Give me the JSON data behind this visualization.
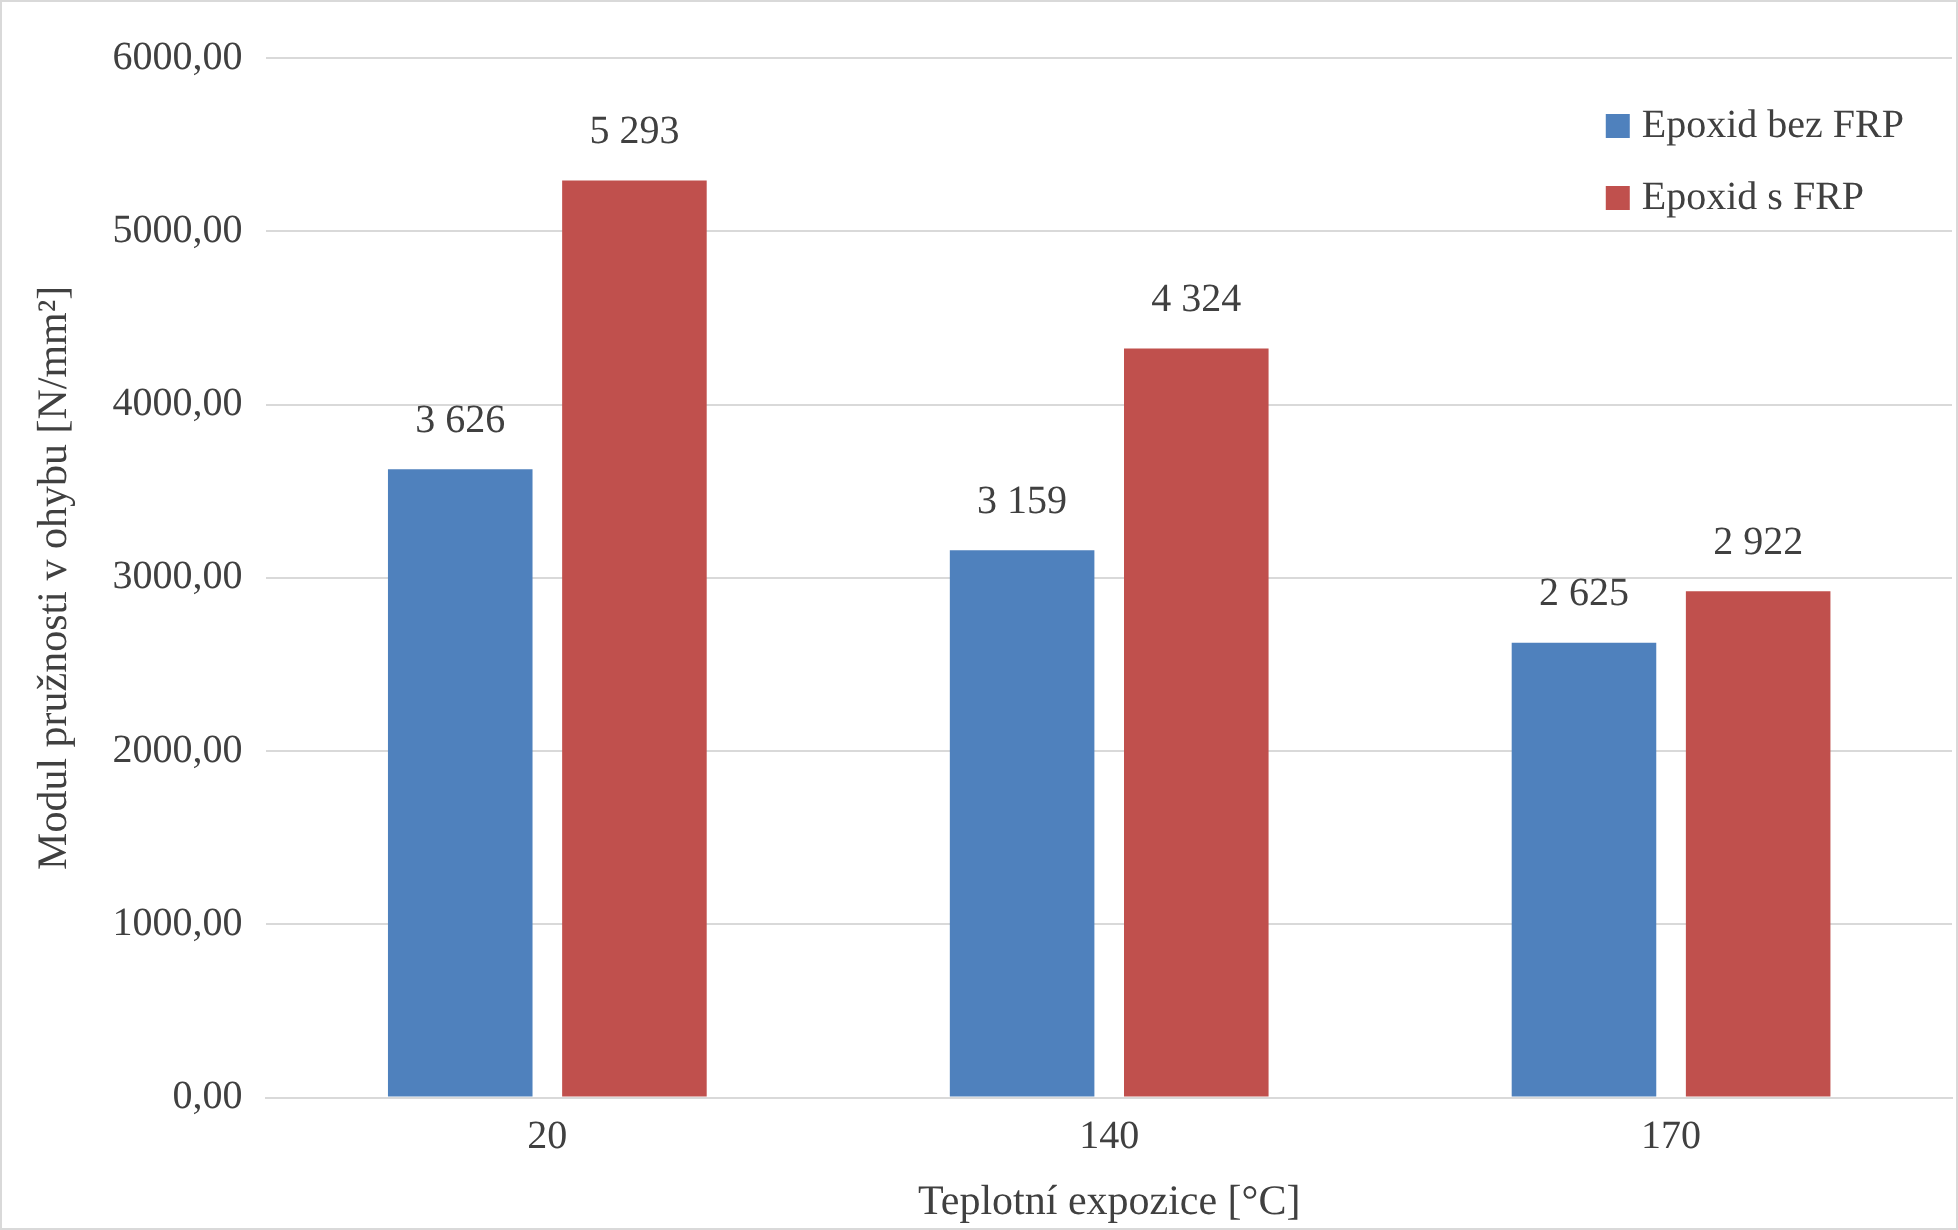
{
  "chart_data": {
    "type": "bar",
    "xlabel": "Teplotní expozice [°C]",
    "ylabel": "Modul pružnosti v ohybu [N/mm²]",
    "categories": [
      "20",
      "140",
      "170"
    ],
    "series": [
      {
        "name": "Epoxid bez FRP",
        "color": "#4f81bd",
        "values": [
          3626,
          3159,
          2625
        ],
        "value_labels": [
          "3 626",
          "3 159",
          "2 625"
        ]
      },
      {
        "name": "Epoxid s FRP",
        "color": "#c0504d",
        "values": [
          5293,
          4324,
          2922
        ],
        "value_labels": [
          "5 293",
          "4 324",
          "2 922"
        ]
      }
    ],
    "ylim": [
      0,
      6000
    ],
    "yticks": [
      {
        "value": 0,
        "label": "0,00"
      },
      {
        "value": 1000,
        "label": "1000,00"
      },
      {
        "value": 2000,
        "label": "2000,00"
      },
      {
        "value": 3000,
        "label": "3000,00"
      },
      {
        "value": 4000,
        "label": "4000,00"
      },
      {
        "value": 5000,
        "label": "5000,00"
      },
      {
        "value": 6000,
        "label": "6000,00"
      }
    ],
    "grid": "y",
    "legend": "top right"
  }
}
